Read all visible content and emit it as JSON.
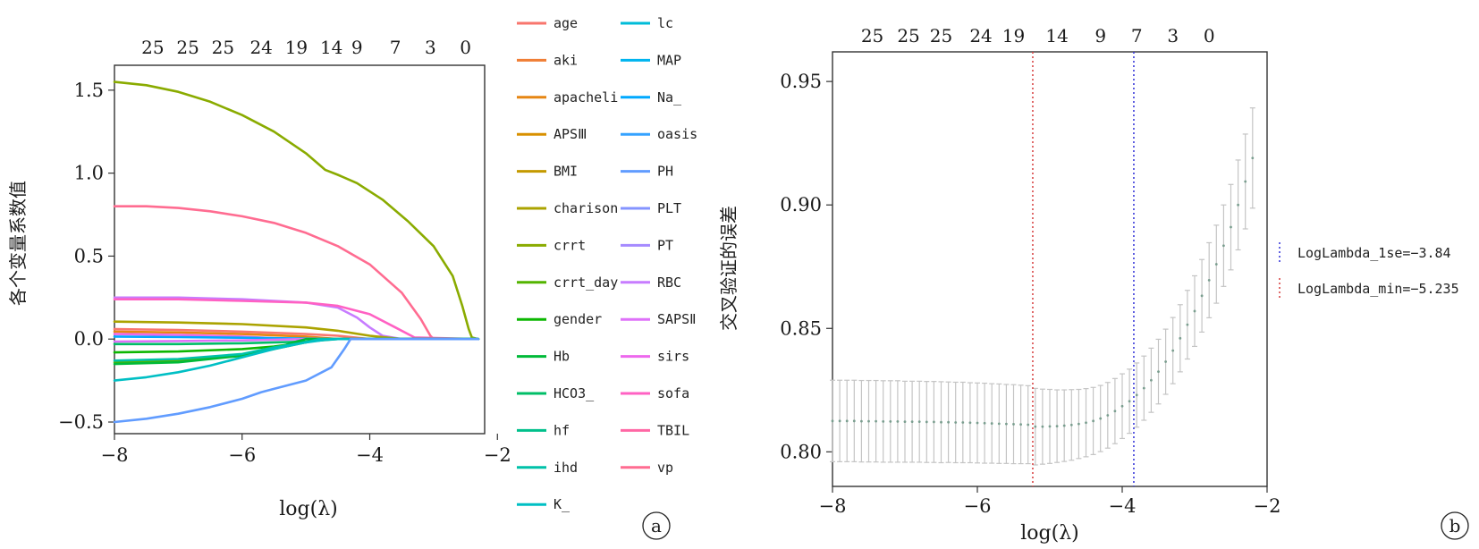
{
  "chart_data": [
    {
      "type": "line",
      "panel_label": "a",
      "xlabel": "log(λ)",
      "ylabel": "各个变量系数值",
      "xlim": [
        -8.0,
        -2.2
      ],
      "ylim": [
        -0.57,
        1.65
      ],
      "x_ticks": [
        -8,
        -6,
        -4,
        -2
      ],
      "x_tick_labels": [
        "−8",
        "−6",
        "−4",
        "−2"
      ],
      "y_ticks": [
        -0.5,
        0.0,
        0.5,
        1.0,
        1.5
      ],
      "y_tick_labels": [
        "−0.5",
        "0.0",
        "0.5",
        "1.0",
        "1.5"
      ],
      "top_axis": {
        "positions": [
          -7.4,
          -6.85,
          -6.3,
          -5.7,
          -5.15,
          -4.6,
          -4.2,
          -3.6,
          -3.05,
          -2.5
        ],
        "labels": [
          "25",
          "25",
          "25",
          "24",
          "19",
          "14",
          "9",
          "7",
          "3",
          "0"
        ]
      },
      "legend": [
        {
          "name": "age",
          "color": "#F8766D"
        },
        {
          "name": "aki",
          "color": "#F07E35"
        },
        {
          "name": "apacheli",
          "color": "#E68613"
        },
        {
          "name": "APSⅢ",
          "color": "#D89000"
        },
        {
          "name": "BMI",
          "color": "#C49A00"
        },
        {
          "name": "charison",
          "color": "#ABA300"
        },
        {
          "name": "crrt",
          "color": "#8AAB00"
        },
        {
          "name": "crrt_day",
          "color": "#53B400"
        },
        {
          "name": "gender",
          "color": "#0CB702"
        },
        {
          "name": "Hb",
          "color": "#00BA38"
        },
        {
          "name": "HCO3_",
          "color": "#00BE67"
        },
        {
          "name": "hf",
          "color": "#00C08B"
        },
        {
          "name": "ihd",
          "color": "#00C1A9"
        },
        {
          "name": "K_",
          "color": "#00BFC4"
        },
        {
          "name": "lc",
          "color": "#00BCD8"
        },
        {
          "name": "MAP",
          "color": "#00B4EF"
        },
        {
          "name": "Na_",
          "color": "#00A9FF"
        },
        {
          "name": "oasis",
          "color": "#35A2FF"
        },
        {
          "name": "PH",
          "color": "#619CFF"
        },
        {
          "name": "PLT",
          "color": "#8494FF"
        },
        {
          "name": "PT",
          "color": "#A58AFF"
        },
        {
          "name": "RBC",
          "color": "#C77CFF"
        },
        {
          "name": "SAPSⅡ",
          "color": "#DE71F9"
        },
        {
          "name": "sirs",
          "color": "#ED68ED"
        },
        {
          "name": "sofa",
          "color": "#FF61C3"
        },
        {
          "name": "TBIL",
          "color": "#FF67A4"
        },
        {
          "name": "vp",
          "color": "#FF6C91"
        }
      ],
      "series": [
        {
          "color": "#8AAB00",
          "x": [
            -8,
            -7.5,
            -7,
            -6.5,
            -6,
            -5.5,
            -5,
            -4.7,
            -4.5,
            -4.2,
            -3.8,
            -3.4,
            -3.0,
            -2.7,
            -2.55,
            -2.45,
            -2.4,
            -2.3
          ],
          "y": [
            1.55,
            1.53,
            1.49,
            1.43,
            1.35,
            1.25,
            1.12,
            1.02,
            0.99,
            0.94,
            0.84,
            0.71,
            0.56,
            0.38,
            0.2,
            0.06,
            0.01,
            0.0
          ]
        },
        {
          "color": "#FF6C91",
          "x": [
            -8,
            -7.5,
            -7,
            -6.5,
            -6,
            -5.5,
            -5,
            -4.5,
            -4.0,
            -3.5,
            -3.2,
            -3.05,
            -3.0,
            -2.3
          ],
          "y": [
            0.8,
            0.8,
            0.79,
            0.77,
            0.74,
            0.7,
            0.64,
            0.56,
            0.45,
            0.28,
            0.12,
            0.02,
            0.0,
            0.0
          ]
        },
        {
          "color": "#C77CFF",
          "x": [
            -8,
            -7,
            -6,
            -5.5,
            -5,
            -4.5,
            -4.2,
            -4.0,
            -3.8,
            -3.5,
            -2.3
          ],
          "y": [
            0.25,
            0.25,
            0.24,
            0.23,
            0.22,
            0.19,
            0.13,
            0.07,
            0.02,
            0.0,
            0.0
          ]
        },
        {
          "color": "#FF61C3",
          "x": [
            -8,
            -7,
            -6,
            -5,
            -4.5,
            -4.0,
            -3.6,
            -3.3,
            -2.3
          ],
          "y": [
            0.24,
            0.24,
            0.23,
            0.22,
            0.2,
            0.15,
            0.07,
            0.01,
            0.0
          ]
        },
        {
          "color": "#ABA300",
          "x": [
            -8,
            -7,
            -6,
            -5,
            -4.5,
            -4,
            -3.5,
            -2.3
          ],
          "y": [
            0.105,
            0.1,
            0.09,
            0.07,
            0.05,
            0.02,
            0.0,
            0.0
          ]
        },
        {
          "color": "#F8766D",
          "x": [
            -8,
            -7,
            -6,
            -5,
            -4.5,
            -4,
            -2.3
          ],
          "y": [
            0.06,
            0.055,
            0.045,
            0.03,
            0.02,
            0.0,
            0.0
          ]
        },
        {
          "color": "#E68613",
          "x": [
            -8,
            -7,
            -6,
            -5,
            -4.5,
            -2.3
          ],
          "y": [
            0.045,
            0.04,
            0.03,
            0.015,
            0.0,
            0.0
          ]
        },
        {
          "color": "#ED68ED",
          "x": [
            -8,
            -7,
            -6,
            -5.5,
            -5,
            -2.3
          ],
          "y": [
            0.03,
            0.025,
            0.015,
            0.005,
            0.0,
            0.0
          ]
        },
        {
          "color": "#00A9FF",
          "x": [
            -8,
            -7,
            -6,
            -5,
            -4.5,
            -2.3
          ],
          "y": [
            0.015,
            0.012,
            0.008,
            0.003,
            0.0,
            0.0
          ]
        },
        {
          "color": "#DE71F9",
          "x": [
            -8,
            -7,
            -6,
            -5,
            -2.3
          ],
          "y": [
            -0.015,
            -0.012,
            -0.008,
            0.0,
            0.0
          ]
        },
        {
          "color": "#00BE67",
          "x": [
            -8,
            -7,
            -6,
            -5,
            -4.5,
            -2.3
          ],
          "y": [
            -0.03,
            -0.03,
            -0.025,
            -0.015,
            0.0,
            0.0
          ]
        },
        {
          "color": "#0CB702",
          "x": [
            -8,
            -7,
            -6,
            -5.5,
            -5,
            -4.7,
            -2.3
          ],
          "y": [
            -0.08,
            -0.075,
            -0.06,
            -0.045,
            -0.02,
            0.0,
            0.0
          ]
        },
        {
          "color": "#53B400",
          "x": [
            -8,
            -7,
            -6,
            -5.5,
            -5,
            -4.8,
            -2.3
          ],
          "y": [
            -0.14,
            -0.13,
            -0.1,
            -0.06,
            -0.02,
            0.0,
            0.0
          ]
        },
        {
          "color": "#00BA38",
          "x": [
            -8,
            -7,
            -6,
            -5.5,
            -5.2,
            -5.0,
            -2.3
          ],
          "y": [
            -0.15,
            -0.14,
            -0.1,
            -0.06,
            -0.02,
            0.0,
            0.0
          ]
        },
        {
          "color": "#00C1A9",
          "x": [
            -8,
            -7,
            -6,
            -5.5,
            -5,
            -4.8,
            -2.3
          ],
          "y": [
            -0.13,
            -0.12,
            -0.09,
            -0.05,
            -0.02,
            0.0,
            0.0
          ]
        },
        {
          "color": "#00BFC4",
          "x": [
            -8,
            -7.5,
            -7,
            -6.5,
            -6,
            -5.5,
            -5,
            -4.7,
            -4.5,
            -2.3
          ],
          "y": [
            -0.25,
            -0.23,
            -0.2,
            -0.16,
            -0.11,
            -0.06,
            -0.02,
            -0.005,
            0.0,
            0.0
          ]
        },
        {
          "color": "#619CFF",
          "x": [
            -8,
            -7.5,
            -7,
            -6.5,
            -6,
            -5.7,
            -5.5,
            -5.0,
            -4.6,
            -4.4,
            -4.3,
            -2.3
          ],
          "y": [
            -0.5,
            -0.48,
            -0.45,
            -0.41,
            -0.36,
            -0.32,
            -0.3,
            -0.25,
            -0.17,
            -0.06,
            0.0,
            0.0
          ]
        }
      ]
    },
    {
      "type": "scatter",
      "panel_label": "b",
      "xlabel": "log(λ)",
      "ylabel": "交叉验证的误差",
      "xlim": [
        -8.0,
        -2.0
      ],
      "ylim": [
        0.786,
        0.962
      ],
      "x_ticks": [
        -8,
        -6,
        -4,
        -2
      ],
      "x_tick_labels": [
        "−8",
        "−6",
        "−4",
        "−2"
      ],
      "y_ticks": [
        0.8,
        0.85,
        0.9,
        0.95
      ],
      "y_tick_labels": [
        "0.80",
        "0.85",
        "0.90",
        "0.95"
      ],
      "top_axis": {
        "positions": [
          -7.45,
          -6.95,
          -6.5,
          -5.95,
          -5.5,
          -4.9,
          -4.3,
          -3.8,
          -3.3,
          -2.8
        ],
        "labels": [
          "25",
          "25",
          "25",
          "24",
          "19",
          "14",
          "9",
          "7",
          "3",
          "0"
        ]
      },
      "vlines": [
        {
          "x": -3.84,
          "color": "#3b3bdb",
          "label": "LogLambda_1se=−3.84"
        },
        {
          "x": -5.235,
          "color": "#d94848",
          "label": "LogLambda_min=−5.235"
        }
      ],
      "point_color": "#7a9e8f",
      "errorbar_color": "#c4c4c4",
      "x": [
        -8.0,
        -7.9,
        -7.8,
        -7.7,
        -7.6,
        -7.5,
        -7.4,
        -7.3,
        -7.2,
        -7.1,
        -7.0,
        -6.9,
        -6.8,
        -6.7,
        -6.6,
        -6.5,
        -6.4,
        -6.3,
        -6.2,
        -6.1,
        -6.0,
        -5.9,
        -5.8,
        -5.7,
        -5.6,
        -5.5,
        -5.4,
        -5.3,
        -5.2,
        -5.1,
        -5.0,
        -4.9,
        -4.8,
        -4.7,
        -4.6,
        -4.5,
        -4.4,
        -4.3,
        -4.2,
        -4.1,
        -4.0,
        -3.9,
        -3.8,
        -3.7,
        -3.6,
        -3.5,
        -3.4,
        -3.3,
        -3.2,
        -3.1,
        -3.0,
        -2.9,
        -2.8,
        -2.7,
        -2.6,
        -2.5,
        -2.4,
        -2.3,
        -2.2
      ],
      "y": [
        0.8125,
        0.8125,
        0.8125,
        0.8125,
        0.8124,
        0.8124,
        0.8124,
        0.8123,
        0.8123,
        0.8123,
        0.8122,
        0.8122,
        0.8122,
        0.8121,
        0.8121,
        0.812,
        0.812,
        0.8119,
        0.8119,
        0.8118,
        0.8117,
        0.8116,
        0.8115,
        0.8114,
        0.8113,
        0.8112,
        0.8111,
        0.811,
        0.8102,
        0.8102,
        0.8103,
        0.8104,
        0.8106,
        0.8109,
        0.8113,
        0.8118,
        0.8125,
        0.8135,
        0.8148,
        0.8165,
        0.8185,
        0.8205,
        0.823,
        0.8258,
        0.829,
        0.8325,
        0.8365,
        0.841,
        0.846,
        0.8515,
        0.857,
        0.8632,
        0.8695,
        0.876,
        0.8835,
        0.891,
        0.9,
        0.9095,
        0.919
      ],
      "err": [
        0.0165,
        0.0165,
        0.0165,
        0.0165,
        0.0165,
        0.0165,
        0.0165,
        0.0165,
        0.0165,
        0.0165,
        0.0164,
        0.0164,
        0.0164,
        0.0164,
        0.0164,
        0.0164,
        0.0163,
        0.0163,
        0.0163,
        0.0162,
        0.0162,
        0.0162,
        0.0161,
        0.0161,
        0.016,
        0.016,
        0.0159,
        0.0158,
        0.0155,
        0.0152,
        0.015,
        0.0147,
        0.0145,
        0.0143,
        0.014,
        0.0138,
        0.0136,
        0.0134,
        0.0133,
        0.0132,
        0.0131,
        0.013,
        0.013,
        0.013,
        0.013,
        0.0131,
        0.0132,
        0.0134,
        0.0136,
        0.0139,
        0.0143,
        0.0147,
        0.0152,
        0.0158,
        0.0165,
        0.0173,
        0.0182,
        0.0192,
        0.0203
      ]
    }
  ]
}
